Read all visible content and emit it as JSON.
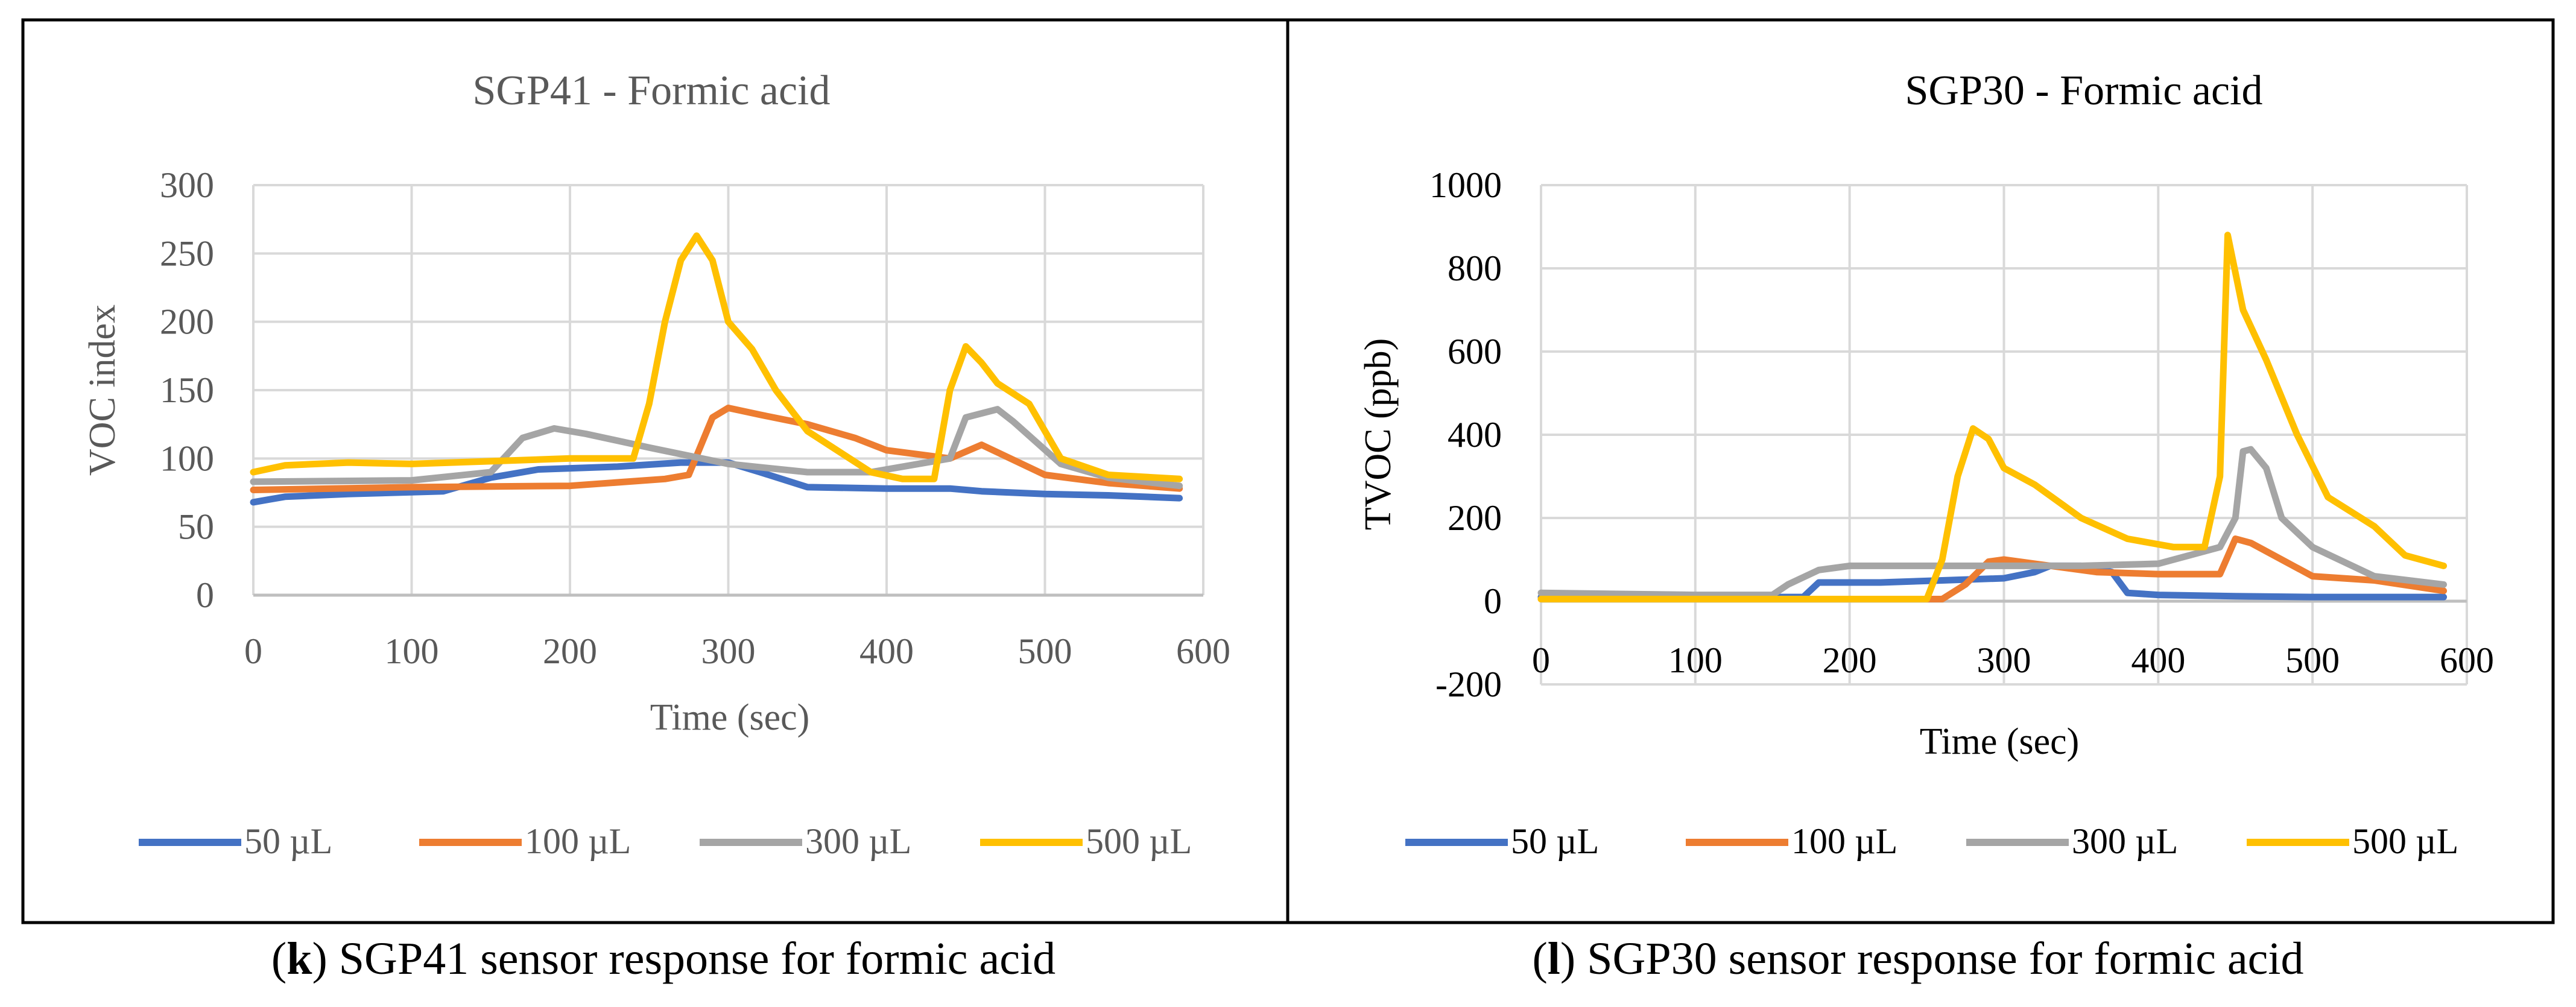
{
  "colors": {
    "s50": "#4472C4",
    "s100": "#ED7D31",
    "s300": "#A5A5A5",
    "s500": "#FFC000",
    "grid": "#d9d9d9",
    "axis_text": "#595959",
    "frame": "#000000"
  },
  "chart_data": [
    {
      "panel": "k",
      "type": "line",
      "title": "SGP41 - Formic acid",
      "xlabel": "Time (sec)",
      "ylabel": "VOC index",
      "xlim": [
        0,
        600
      ],
      "ylim": [
        0,
        300
      ],
      "x_ticks": [
        0,
        100,
        200,
        300,
        400,
        500,
        600
      ],
      "y_ticks": [
        0,
        50,
        100,
        150,
        200,
        250,
        300
      ],
      "grid": true,
      "legend_position": "bottom",
      "caption_label": "k",
      "caption_text": " SGP41 sensor response for formic acid",
      "series": [
        {
          "name": "50 µL",
          "color_key": "s50",
          "x": [
            0,
            10,
            20,
            60,
            120,
            150,
            180,
            230,
            270,
            300,
            320,
            350,
            400,
            440,
            460,
            500,
            540,
            585
          ],
          "y": [
            68,
            70,
            72,
            74,
            76,
            86,
            92,
            94,
            97,
            97,
            90,
            79,
            78,
            78,
            76,
            74,
            73,
            71
          ]
        },
        {
          "name": "100 µL",
          "color_key": "s100",
          "x": [
            0,
            100,
            200,
            260,
            275,
            290,
            300,
            320,
            350,
            380,
            400,
            440,
            460,
            500,
            540,
            585
          ],
          "y": [
            77,
            79,
            80,
            85,
            88,
            130,
            137,
            132,
            125,
            115,
            106,
            100,
            110,
            88,
            82,
            78
          ]
        },
        {
          "name": "300 µL",
          "color_key": "s300",
          "x": [
            0,
            100,
            150,
            170,
            190,
            210,
            250,
            300,
            350,
            390,
            420,
            440,
            450,
            470,
            480,
            510,
            540,
            585
          ],
          "y": [
            83,
            84,
            90,
            115,
            122,
            118,
            108,
            96,
            90,
            90,
            96,
            100,
            130,
            136,
            127,
            96,
            86,
            80
          ]
        },
        {
          "name": "500 µL",
          "color_key": "s500",
          "x": [
            0,
            20,
            60,
            100,
            150,
            200,
            240,
            250,
            260,
            270,
            280,
            290,
            300,
            315,
            330,
            350,
            370,
            390,
            410,
            430,
            440,
            450,
            460,
            470,
            490,
            510,
            540,
            585
          ],
          "y": [
            90,
            95,
            97,
            96,
            98,
            100,
            100,
            140,
            200,
            245,
            263,
            245,
            200,
            180,
            150,
            120,
            105,
            90,
            85,
            85,
            150,
            182,
            170,
            155,
            140,
            100,
            88,
            85
          ]
        }
      ]
    },
    {
      "panel": "l",
      "type": "line",
      "title": "SGP30 - Formic acid",
      "xlabel": "Time (sec)",
      "ylabel": "TVOC (ppb)",
      "xlim": [
        0,
        600
      ],
      "ylim": [
        -200,
        1000
      ],
      "x_ticks": [
        0,
        100,
        200,
        300,
        400,
        500,
        600
      ],
      "y_ticks": [
        -200,
        0,
        200,
        400,
        600,
        800,
        1000
      ],
      "grid": true,
      "legend_position": "bottom",
      "caption_label": "l",
      "caption_text": " SGP30 sensor response for formic acid",
      "series": [
        {
          "name": "50 µL",
          "color_key": "s50",
          "x": [
            0,
            170,
            180,
            220,
            260,
            300,
            320,
            330,
            350,
            370,
            380,
            400,
            450,
            500,
            585
          ],
          "y": [
            10,
            10,
            45,
            45,
            50,
            55,
            70,
            85,
            85,
            70,
            20,
            15,
            12,
            10,
            10
          ]
        },
        {
          "name": "100 µL",
          "color_key": "s100",
          "x": [
            0,
            260,
            275,
            290,
            300,
            320,
            360,
            400,
            440,
            450,
            460,
            480,
            500,
            540,
            585
          ],
          "y": [
            5,
            5,
            40,
            95,
            100,
            90,
            70,
            65,
            65,
            150,
            140,
            100,
            60,
            50,
            25
          ]
        },
        {
          "name": "300 µL",
          "color_key": "s300",
          "x": [
            0,
            100,
            150,
            160,
            180,
            200,
            250,
            300,
            350,
            400,
            440,
            450,
            455,
            460,
            470,
            480,
            500,
            540,
            585
          ],
          "y": [
            20,
            15,
            15,
            40,
            75,
            85,
            85,
            85,
            85,
            90,
            130,
            200,
            360,
            365,
            320,
            200,
            130,
            60,
            40
          ]
        },
        {
          "name": "500 µL",
          "color_key": "s500",
          "x": [
            0,
            100,
            250,
            260,
            270,
            280,
            290,
            300,
            320,
            350,
            380,
            410,
            430,
            440,
            445,
            455,
            470,
            490,
            510,
            540,
            560,
            585
          ],
          "y": [
            5,
            5,
            5,
            100,
            300,
            415,
            390,
            320,
            280,
            200,
            150,
            130,
            130,
            300,
            880,
            700,
            580,
            400,
            250,
            180,
            110,
            85
          ]
        }
      ]
    }
  ]
}
